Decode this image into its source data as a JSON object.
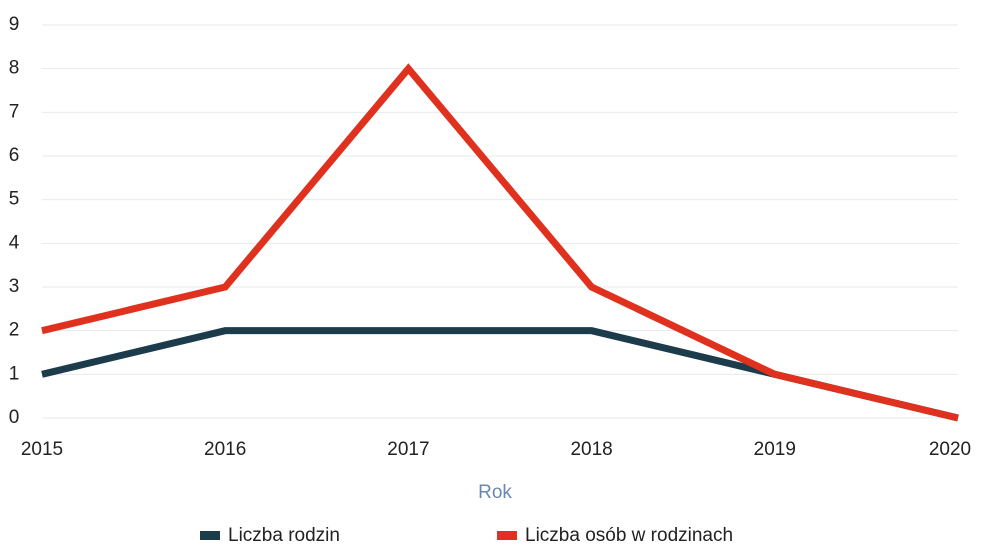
{
  "chart_data": {
    "type": "line",
    "x_label": "Rok",
    "categories": [
      "2015",
      "2016",
      "2017",
      "2018",
      "2019",
      "2020"
    ],
    "series": [
      {
        "name": "Liczba rodzin",
        "color": "#1c3b4b",
        "values": [
          1,
          2,
          2,
          2,
          1,
          0
        ]
      },
      {
        "name": "Liczba osób w rodzinach",
        "color": "#e0311f",
        "values": [
          2,
          3,
          8,
          3,
          1,
          0
        ]
      }
    ],
    "ylim": [
      0,
      9
    ],
    "yticks": [
      0,
      1,
      2,
      3,
      4,
      5,
      6,
      7,
      8,
      9
    ],
    "grid": true
  }
}
